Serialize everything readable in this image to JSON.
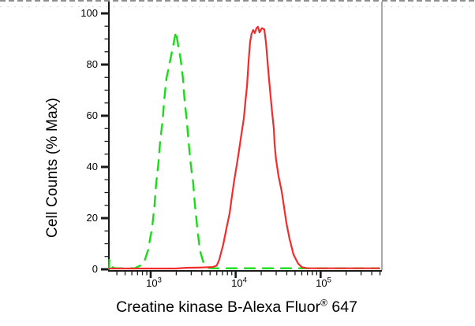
{
  "chart_data": {
    "type": "line",
    "subtype": "flow-cytometry-overlay-histogram",
    "title": "",
    "ylabel": "Cell Counts (% Max)",
    "xlabel_text": "Creatine kinase B-Alexa Fluor® 647",
    "xlabel": {
      "pre": "Creatine kinase B-Alexa Fluor",
      "sup": "®",
      "post": " 647"
    },
    "x_scale": "log",
    "x_range": [
      322,
      515000
    ],
    "ylim": [
      0,
      100
    ],
    "grid": "off",
    "legend": "none",
    "y_axis": {
      "major_ticks": [
        0,
        20,
        40,
        60,
        80,
        100
      ],
      "minor_ticks": [
        5,
        10,
        15,
        25,
        30,
        35,
        45,
        50,
        55,
        65,
        70,
        75,
        85,
        90,
        95
      ]
    },
    "x_axis": {
      "major_ticks": [
        {
          "value": 1000,
          "label_base": "10",
          "label_exp": "3"
        },
        {
          "value": 10000,
          "label_base": "10",
          "label_exp": "4"
        },
        {
          "value": 100000,
          "label_base": "10",
          "label_exp": "5"
        }
      ],
      "minor_ticks": [
        400,
        500,
        600,
        700,
        800,
        900,
        2000,
        3000,
        4000,
        5000,
        6000,
        7000,
        8000,
        9000,
        20000,
        30000,
        40000,
        50000,
        60000,
        70000,
        80000,
        90000,
        200000,
        300000,
        400000,
        500000
      ]
    },
    "colors": {
      "negative_control": "#17dd17",
      "stained_sample": "#f22c2c",
      "axis": "#1a1a1a",
      "plot_right_border": "#a9a9a9"
    },
    "series": [
      {
        "name": "negative-control",
        "color": "#17dd17",
        "line_style": "dashed",
        "peak": {
          "x": 1980,
          "y": 92.9
        },
        "points": [
          [
            324,
            0.2
          ],
          [
            326,
            3.7
          ],
          [
            333,
            1.2
          ],
          [
            380,
            0.4
          ],
          [
            650,
            0.4
          ],
          [
            760,
            1.5
          ],
          [
            830,
            2.5
          ],
          [
            930,
            7.4
          ],
          [
            1040,
            16.3
          ],
          [
            1110,
            25.2
          ],
          [
            1160,
            33.5
          ],
          [
            1230,
            41.2
          ],
          [
            1290,
            49.8
          ],
          [
            1380,
            57.8
          ],
          [
            1440,
            65.8
          ],
          [
            1530,
            74.5
          ],
          [
            1710,
            82.2
          ],
          [
            1870,
            88.5
          ],
          [
            1980,
            92.9
          ],
          [
            2120,
            87.0
          ],
          [
            2250,
            82.2
          ],
          [
            2400,
            74.5
          ],
          [
            2510,
            65.8
          ],
          [
            2660,
            58.2
          ],
          [
            2790,
            49.8
          ],
          [
            2960,
            41.2
          ],
          [
            3170,
            33.5
          ],
          [
            3310,
            25.2
          ],
          [
            3530,
            16.3
          ],
          [
            3790,
            7.4
          ],
          [
            4190,
            2.5
          ],
          [
            4560,
            0.9
          ],
          [
            4870,
            0.5
          ],
          [
            5500,
            0.4
          ],
          [
            490000,
            0.4
          ]
        ]
      },
      {
        "name": "creatine-kinase-b-alexa-fluor-647",
        "color": "#f22c2c",
        "line_style": "solid",
        "peak": {
          "x": 18300,
          "y": 94.8
        },
        "points": [
          [
            330,
            0.3
          ],
          [
            2000,
            0.3
          ],
          [
            2600,
            0.6
          ],
          [
            4000,
            0.7
          ],
          [
            5400,
            0.9
          ],
          [
            6000,
            1.5
          ],
          [
            6400,
            3.7
          ],
          [
            7150,
            9.8
          ],
          [
            7800,
            16.0
          ],
          [
            8500,
            22.0
          ],
          [
            9000,
            28.0
          ],
          [
            9600,
            34.5
          ],
          [
            10300,
            40.6
          ],
          [
            11000,
            46.8
          ],
          [
            11700,
            52.9
          ],
          [
            12500,
            59.1
          ],
          [
            13000,
            65.2
          ],
          [
            13600,
            71.4
          ],
          [
            14200,
            81.5
          ],
          [
            14800,
            88.9
          ],
          [
            15400,
            92.0
          ],
          [
            16100,
            93.5
          ],
          [
            16800,
            92.3
          ],
          [
            17600,
            94.2
          ],
          [
            18300,
            94.8
          ],
          [
            19100,
            92.6
          ],
          [
            20400,
            94.2
          ],
          [
            21700,
            93.8
          ],
          [
            22700,
            88.9
          ],
          [
            23700,
            81.5
          ],
          [
            24700,
            74.5
          ],
          [
            25800,
            67.4
          ],
          [
            26900,
            61.2
          ],
          [
            28100,
            55.1
          ],
          [
            28700,
            48.9
          ],
          [
            29900,
            42.8
          ],
          [
            31900,
            36.6
          ],
          [
            34800,
            30.5
          ],
          [
            37100,
            24.3
          ],
          [
            39500,
            18.2
          ],
          [
            43000,
            12.0
          ],
          [
            47900,
            5.8
          ],
          [
            54500,
            2.2
          ],
          [
            60600,
            0.8
          ],
          [
            70000,
            0.4
          ],
          [
            490000,
            0.4
          ]
        ]
      }
    ]
  }
}
